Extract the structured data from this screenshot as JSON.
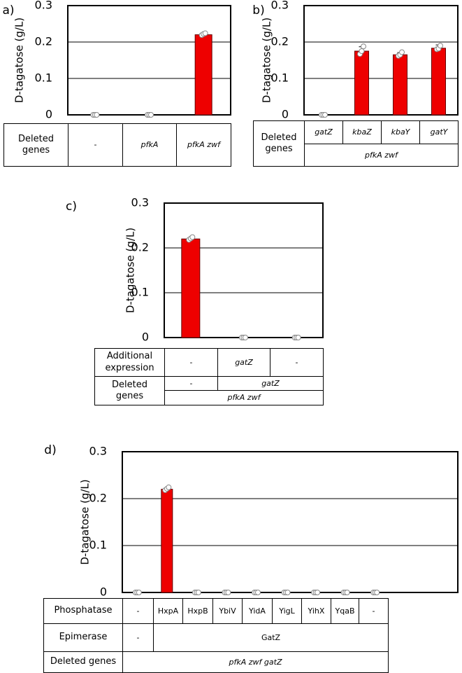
{
  "chart_data": [
    {
      "type": "bar",
      "panel": "a)",
      "ylabel": "D-tagatose (g/L)",
      "color": "#ee0000",
      "values": [
        0,
        0,
        0.22
      ],
      "errors": [
        0,
        0,
        0.003
      ],
      "points": [
        [
          0,
          0,
          0
        ],
        [
          0,
          0,
          0
        ],
        [
          0.219,
          0.222,
          0.224
        ]
      ],
      "ylim": [
        0,
        0.3
      ],
      "yticks": [
        0,
        0.1,
        0.2,
        0.3
      ],
      "grid": true,
      "table": {
        "rows": [
          [
            "Deleted genes",
            "-",
            "pfkA",
            "pfkA zwf"
          ]
        ]
      }
    },
    {
      "type": "bar",
      "panel": "b)",
      "ylabel": "D-tagatose (g/L)",
      "color": "#ee0000",
      "values": [
        0,
        0.175,
        0.165,
        0.183
      ],
      "errors": [
        0,
        0.012,
        0.006,
        0.009
      ],
      "points": [
        [
          0,
          0,
          0
        ],
        [
          0.167,
          0.175,
          0.188
        ],
        [
          0.162,
          0.165,
          0.172
        ],
        [
          0.18,
          0.182,
          0.19
        ]
      ],
      "ylim": [
        0,
        0.3
      ],
      "yticks": [
        0,
        0.1,
        0.2,
        0.3
      ],
      "grid": true,
      "table": {
        "rows": [
          [
            "Deleted genes",
            "gatZ",
            "kbaZ",
            "kbaY",
            "gatY"
          ],
          [
            "pfkA zwf"
          ]
        ]
      }
    },
    {
      "type": "bar",
      "panel": "c)",
      "ylabel": "D-tagatose (g/L)",
      "color": "#ee0000",
      "values": [
        0.22,
        0,
        0
      ],
      "errors": [
        0.003,
        0,
        0
      ],
      "points": [
        [
          0.218,
          0.221,
          0.224
        ],
        [
          0,
          0,
          0
        ],
        [
          0,
          0,
          0
        ]
      ],
      "ylim": [
        0,
        0.3
      ],
      "yticks": [
        0,
        0.1,
        0.2,
        0.3
      ],
      "grid": true,
      "table": {
        "rows": [
          [
            "Additional expression",
            "-",
            "gatZ",
            "-"
          ],
          [
            "Deleted genes",
            "-",
            "gatZ"
          ],
          [
            "pfkA zwf"
          ]
        ]
      }
    },
    {
      "type": "bar",
      "panel": "d)",
      "ylabel": "D-tagatose (g/L)",
      "color": "#ee0000",
      "values": [
        0,
        0.22,
        0,
        0,
        0,
        0,
        0,
        0,
        0
      ],
      "errors": [
        0,
        0.003,
        0,
        0,
        0,
        0,
        0,
        0,
        0
      ],
      "points": [
        [
          0,
          0,
          0
        ],
        [
          0.218,
          0.221,
          0.224
        ],
        [
          0,
          0,
          0
        ],
        [
          0,
          0,
          0
        ],
        [
          0,
          0,
          0
        ],
        [
          0,
          0,
          0
        ],
        [
          0,
          0,
          0
        ],
        [
          0,
          0,
          0
        ],
        [
          0,
          0,
          0
        ]
      ],
      "ylim": [
        0,
        0.3
      ],
      "yticks": [
        0,
        0.1,
        0.2,
        0.3
      ],
      "grid": true,
      "table": {
        "rows": [
          [
            "Phosphatase",
            "-",
            "HxpA",
            "HxpB",
            "YbiV",
            "YidA",
            "YigL",
            "YihX",
            "YqaB",
            "-"
          ],
          [
            "Epimerase",
            "-",
            "GatZ"
          ],
          [
            "Deleted genes",
            "pfkA zwf gatZ"
          ]
        ]
      }
    }
  ]
}
